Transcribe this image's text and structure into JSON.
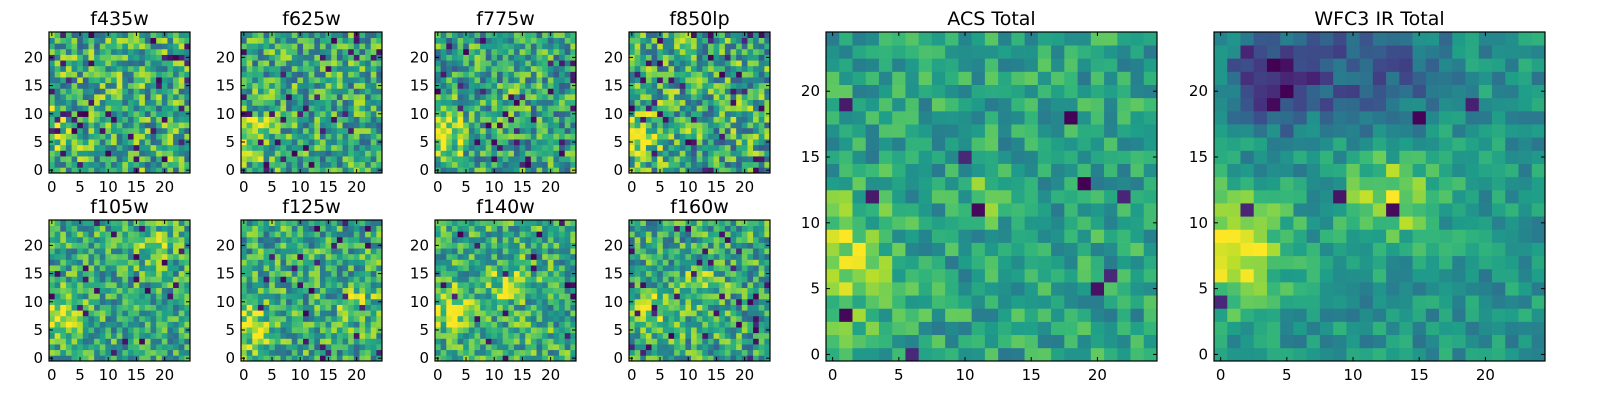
{
  "chart_data": [
    {
      "type": "heatmap",
      "title": "f435w",
      "grid_size": 25,
      "xlim": [
        -0.5,
        24.5
      ],
      "ylim": [
        -0.5,
        24.5
      ],
      "xticks": [
        0,
        5,
        10,
        15,
        20
      ],
      "yticks": [
        0,
        5,
        10,
        15,
        20
      ],
      "colormap": "viridis",
      "seed": 11,
      "base_level": 0.62,
      "noise_level": 0.32,
      "dark_pixel_fraction": 0.07,
      "hotspots": [
        {
          "x": 0,
          "y": 7,
          "sigma": 2.6,
          "amp": 0.3
        }
      ]
    },
    {
      "type": "heatmap",
      "title": "f625w",
      "grid_size": 25,
      "xlim": [
        -0.5,
        24.5
      ],
      "ylim": [
        -0.5,
        24.5
      ],
      "xticks": [
        0,
        5,
        10,
        15,
        20
      ],
      "yticks": [
        0,
        5,
        10,
        15,
        20
      ],
      "colormap": "viridis",
      "seed": 23,
      "base_level": 0.6,
      "noise_level": 0.3,
      "dark_pixel_fraction": 0.05,
      "hotspots": [
        {
          "x": 0,
          "y": 6,
          "sigma": 3.0,
          "amp": 0.35
        }
      ]
    },
    {
      "type": "heatmap",
      "title": "f775w",
      "grid_size": 25,
      "xlim": [
        -0.5,
        24.5
      ],
      "ylim": [
        -0.5,
        24.5
      ],
      "xticks": [
        0,
        5,
        10,
        15,
        20
      ],
      "yticks": [
        0,
        5,
        10,
        15,
        20
      ],
      "colormap": "viridis",
      "seed": 37,
      "base_level": 0.58,
      "noise_level": 0.3,
      "dark_pixel_fraction": 0.05,
      "hotspots": [
        {
          "x": 0,
          "y": 6,
          "sigma": 3.2,
          "amp": 0.4
        },
        {
          "x": 12,
          "y": 12,
          "sigma": 2.0,
          "amp": 0.12
        }
      ]
    },
    {
      "type": "heatmap",
      "title": "f850lp",
      "grid_size": 25,
      "xlim": [
        -0.5,
        24.5
      ],
      "ylim": [
        -0.5,
        24.5
      ],
      "xticks": [
        0,
        5,
        10,
        15,
        20
      ],
      "yticks": [
        0,
        5,
        10,
        15,
        20
      ],
      "colormap": "viridis",
      "seed": 41,
      "base_level": 0.6,
      "noise_level": 0.34,
      "dark_pixel_fraction": 0.06,
      "hotspots": [
        {
          "x": 0,
          "y": 6,
          "sigma": 3.0,
          "amp": 0.35
        }
      ]
    },
    {
      "type": "heatmap",
      "title": "f105w",
      "grid_size": 25,
      "xlim": [
        -0.5,
        24.5
      ],
      "ylim": [
        -0.5,
        24.5
      ],
      "xticks": [
        0,
        5,
        10,
        15,
        20
      ],
      "yticks": [
        0,
        5,
        10,
        15,
        20
      ],
      "colormap": "viridis",
      "seed": 53,
      "base_level": 0.6,
      "noise_level": 0.26,
      "dark_pixel_fraction": 0.03,
      "hotspots": [
        {
          "x": 1,
          "y": 8,
          "sigma": 3.0,
          "amp": 0.35
        },
        {
          "x": 18,
          "y": 20,
          "sigma": 2.5,
          "amp": 0.2
        }
      ]
    },
    {
      "type": "heatmap",
      "title": "f125w",
      "grid_size": 25,
      "xlim": [
        -0.5,
        24.5
      ],
      "ylim": [
        -0.5,
        24.5
      ],
      "xticks": [
        0,
        5,
        10,
        15,
        20
      ],
      "yticks": [
        0,
        5,
        10,
        15,
        20
      ],
      "colormap": "viridis",
      "seed": 67,
      "base_level": 0.6,
      "noise_level": 0.28,
      "dark_pixel_fraction": 0.04,
      "hotspots": [
        {
          "x": 1,
          "y": 6,
          "sigma": 3.0,
          "amp": 0.3
        },
        {
          "x": 20,
          "y": 10,
          "sigma": 2.5,
          "amp": 0.2
        }
      ]
    },
    {
      "type": "heatmap",
      "title": "f140w",
      "grid_size": 25,
      "xlim": [
        -0.5,
        24.5
      ],
      "ylim": [
        -0.5,
        24.5
      ],
      "xticks": [
        0,
        5,
        10,
        15,
        20
      ],
      "yticks": [
        0,
        5,
        10,
        15,
        20
      ],
      "colormap": "viridis",
      "seed": 71,
      "base_level": 0.62,
      "noise_level": 0.27,
      "dark_pixel_fraction": 0.03,
      "hotspots": [
        {
          "x": 2,
          "y": 9,
          "sigma": 3.0,
          "amp": 0.25
        },
        {
          "x": 12,
          "y": 13,
          "sigma": 2.5,
          "amp": 0.2
        }
      ]
    },
    {
      "type": "heatmap",
      "title": "f160w",
      "grid_size": 25,
      "xlim": [
        -0.5,
        24.5
      ],
      "ylim": [
        -0.5,
        24.5
      ],
      "xticks": [
        0,
        5,
        10,
        15,
        20
      ],
      "yticks": [
        0,
        5,
        10,
        15,
        20
      ],
      "colormap": "viridis",
      "seed": 89,
      "base_level": 0.6,
      "noise_level": 0.28,
      "dark_pixel_fraction": 0.04,
      "hotspots": [
        {
          "x": 3,
          "y": 8,
          "sigma": 3.0,
          "amp": 0.25
        },
        {
          "x": 12,
          "y": 13,
          "sigma": 2.5,
          "amp": 0.22
        }
      ]
    },
    {
      "type": "heatmap",
      "title": "ACS Total",
      "grid_size": 25,
      "xlim": [
        -0.5,
        24.5
      ],
      "ylim": [
        -0.5,
        24.5
      ],
      "xticks": [
        0,
        5,
        10,
        15,
        20
      ],
      "yticks": [
        0,
        5,
        10,
        15,
        20
      ],
      "colormap": "viridis",
      "seed": 97,
      "base_level": 0.58,
      "noise_level": 0.18,
      "dark_pixel_fraction": 0.02,
      "hotspots": [
        {
          "x": 0,
          "y": 7,
          "sigma": 3.0,
          "amp": 0.35
        },
        {
          "x": 12,
          "y": 12,
          "sigma": 1.2,
          "amp": 0.25
        }
      ]
    },
    {
      "type": "heatmap",
      "title": "WFC3 IR Total",
      "grid_size": 25,
      "xlim": [
        -0.5,
        24.5
      ],
      "ylim": [
        -0.5,
        24.5
      ],
      "xticks": [
        0,
        5,
        10,
        15,
        20
      ],
      "yticks": [
        0,
        5,
        10,
        15,
        20
      ],
      "colormap": "viridis",
      "seed": 113,
      "base_level": 0.52,
      "noise_level": 0.14,
      "dark_pixel_fraction": 0.01,
      "hotspots": [
        {
          "x": 1,
          "y": 8,
          "sigma": 3.0,
          "amp": 0.45
        },
        {
          "x": 13,
          "y": 12,
          "sigma": 2.6,
          "amp": 0.35
        },
        {
          "x": 4,
          "y": 21,
          "sigma": 2.5,
          "amp": -0.45
        },
        {
          "x": 12,
          "y": 22,
          "sigma": 3.5,
          "amp": -0.25
        }
      ]
    }
  ]
}
